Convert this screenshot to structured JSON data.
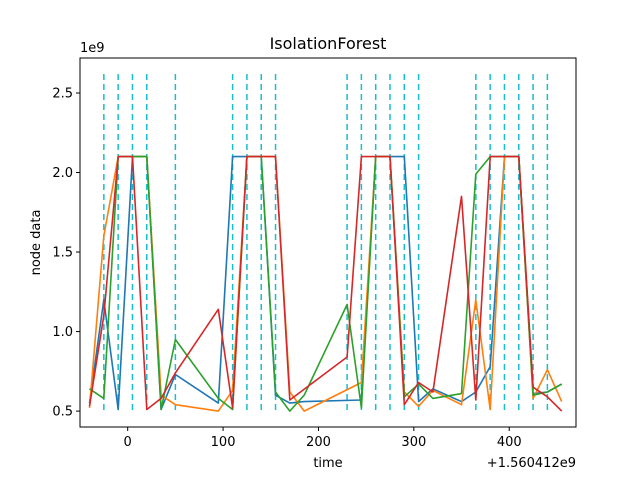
{
  "chart_data": {
    "type": "line",
    "title": "IsolationForest",
    "xlabel": "time",
    "ylabel": "node data",
    "x_offset_label": "+1.560412e9",
    "y_scale_label": "1e9",
    "xlim": [
      -50,
      470
    ],
    "ylim": [
      400000000,
      2720000000
    ],
    "x_ticks": [
      0,
      100,
      200,
      300,
      400
    ],
    "x_tick_labels": [
      "0",
      "100",
      "200",
      "300",
      "400"
    ],
    "y_ticks": [
      500000000,
      1000000000,
      1500000000,
      2000000000,
      2500000000
    ],
    "y_tick_labels": [
      "0.5",
      "1.0",
      "1.5",
      "2.0",
      "2.5"
    ],
    "grid": false,
    "vlines": {
      "color": "#17becf",
      "style": "dashed",
      "x": [
        -25,
        -10,
        5,
        20,
        50,
        110,
        125,
        140,
        155,
        230,
        245,
        260,
        275,
        290,
        305,
        365,
        380,
        395,
        410,
        425,
        440
      ]
    },
    "series": [
      {
        "color": "#1f77b4",
        "x": [
          -40,
          -25,
          -10,
          5,
          20,
          35,
          50,
          95,
          110,
          125,
          140,
          155,
          170,
          185,
          245,
          260,
          275,
          290,
          305,
          320,
          350,
          365,
          380,
          395,
          410,
          425,
          440,
          455
        ],
        "y": [
          550000000,
          1200000000,
          510000000,
          2100000000,
          2100000000,
          510000000,
          730000000,
          550000000,
          2100000000,
          2100000000,
          2100000000,
          600000000,
          550000000,
          560000000,
          570000000,
          2100000000,
          2100000000,
          2100000000,
          560000000,
          640000000,
          560000000,
          620000000,
          780000000,
          2100000000,
          2100000000,
          610000000,
          620000000,
          670000000
        ]
      },
      {
        "color": "#ff7f0e",
        "x": [
          -40,
          -25,
          -10,
          5,
          20,
          35,
          50,
          95,
          110,
          125,
          140,
          155,
          170,
          185,
          245,
          260,
          275,
          290,
          305,
          320,
          350,
          365,
          380,
          395,
          410,
          425,
          440,
          455
        ],
        "y": [
          520000000,
          1600000000,
          2100000000,
          2100000000,
          2100000000,
          600000000,
          540000000,
          500000000,
          630000000,
          2100000000,
          2100000000,
          2100000000,
          620000000,
          500000000,
          680000000,
          2100000000,
          2100000000,
          620000000,
          530000000,
          630000000,
          540000000,
          1200000000,
          510000000,
          2100000000,
          2100000000,
          580000000,
          760000000,
          560000000
        ]
      },
      {
        "color": "#2ca02c",
        "x": [
          -40,
          -25,
          -10,
          5,
          20,
          35,
          50,
          95,
          110,
          125,
          140,
          155,
          170,
          185,
          230,
          245,
          260,
          275,
          290,
          305,
          320,
          350,
          365,
          380,
          395,
          410,
          425,
          440,
          455
        ],
        "y": [
          640000000,
          580000000,
          2100000000,
          2100000000,
          2100000000,
          510000000,
          950000000,
          580000000,
          510000000,
          2100000000,
          2100000000,
          620000000,
          500000000,
          600000000,
          1170000000,
          520000000,
          2100000000,
          2100000000,
          590000000,
          670000000,
          580000000,
          610000000,
          1990000000,
          2100000000,
          2100000000,
          2100000000,
          600000000,
          620000000,
          670000000
        ]
      },
      {
        "color": "#d62728",
        "x": [
          -40,
          -25,
          -10,
          5,
          20,
          35,
          50,
          95,
          110,
          125,
          140,
          155,
          170,
          230,
          245,
          260,
          275,
          290,
          305,
          320,
          350,
          365,
          380,
          395,
          410,
          425,
          440,
          455
        ],
        "y": [
          530000000,
          1100000000,
          2100000000,
          2100000000,
          510000000,
          580000000,
          740000000,
          1140000000,
          520000000,
          2100000000,
          2100000000,
          2100000000,
          570000000,
          840000000,
          2100000000,
          2100000000,
          2100000000,
          540000000,
          680000000,
          620000000,
          1850000000,
          570000000,
          2100000000,
          2100000000,
          2100000000,
          650000000,
          590000000,
          500000000
        ]
      }
    ]
  }
}
